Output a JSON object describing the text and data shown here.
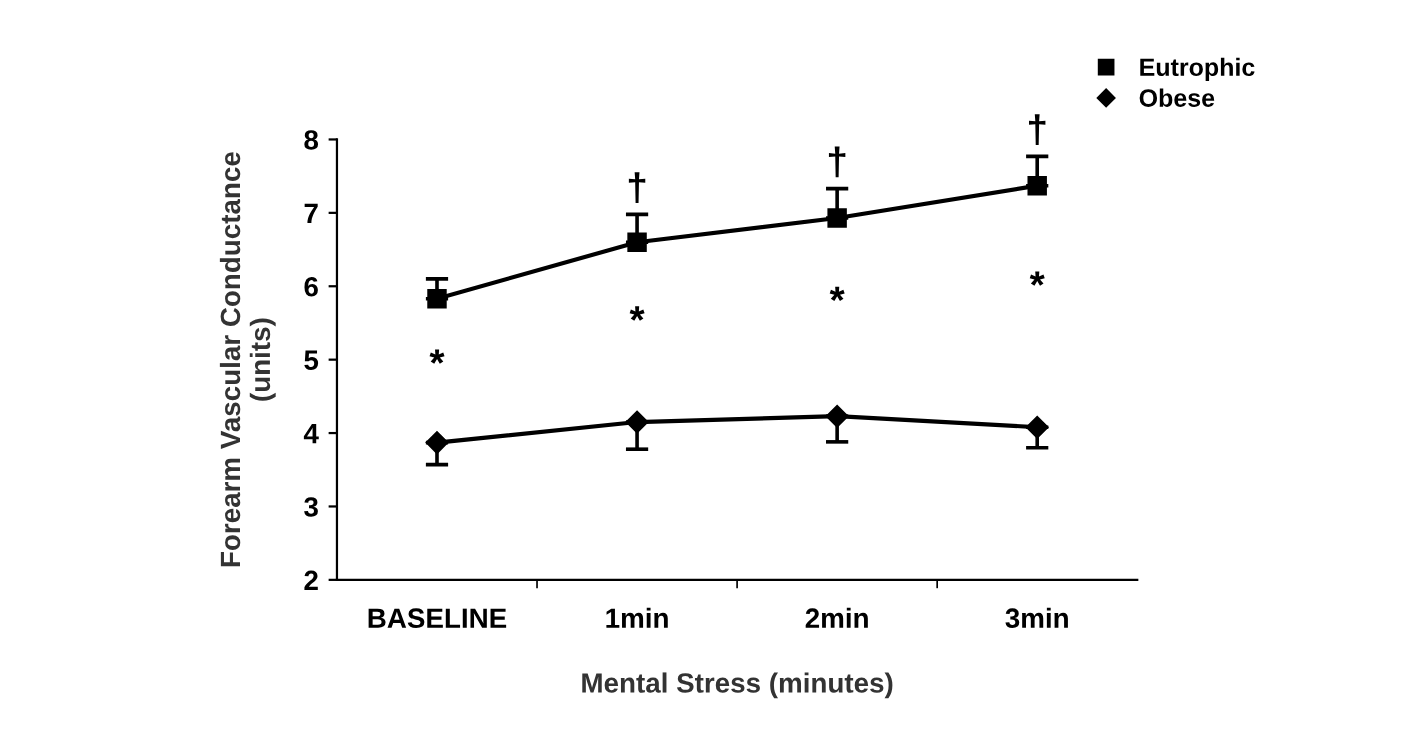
{
  "chart_data": {
    "type": "line",
    "xlabel": "Mental Stress (minutes)",
    "ylabel": "Forearm Vascular Conductance\n(units)",
    "categories": [
      "BASELINE",
      "1min",
      "2min",
      "3min"
    ],
    "series": [
      {
        "name": "Eutrophic",
        "color": "#000000",
        "marker": "square",
        "values": [
          5.83,
          6.6,
          6.93,
          7.37
        ],
        "errors": [
          [
            5.83,
            6.1
          ],
          [
            6.6,
            6.98
          ],
          [
            6.93,
            7.33
          ],
          [
            7.37,
            7.77
          ]
        ]
      },
      {
        "name": "Obese",
        "color": "#000000",
        "marker": "diamond",
        "values": [
          3.87,
          4.15,
          4.23,
          4.08
        ],
        "errors": [
          [
            3.57,
            3.87
          ],
          [
            3.78,
            4.15
          ],
          [
            3.88,
            4.23
          ],
          [
            3.8,
            4.08
          ]
        ]
      }
    ],
    "ylim": [
      2,
      8
    ],
    "yticks": [
      2,
      3,
      4,
      5,
      6,
      7,
      8
    ],
    "grid": false,
    "legend": "top right",
    "line_style": "solid",
    "annotations": [
      "*",
      "*",
      "*",
      "*",
      "†",
      "†",
      "†"
    ]
  }
}
